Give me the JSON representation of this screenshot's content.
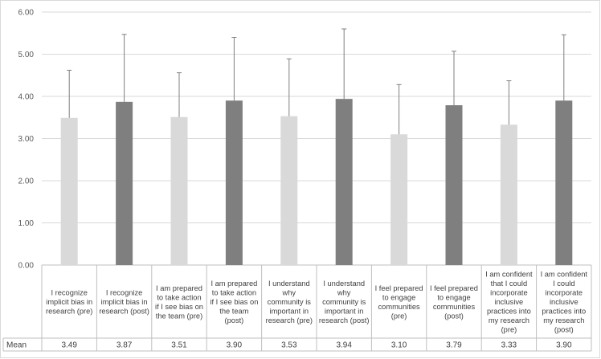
{
  "chart_data": {
    "type": "bar",
    "title": "",
    "xlabel": "",
    "ylabel": "",
    "ylim": [
      0,
      6
    ],
    "yticks": [
      "0.00",
      "1.00",
      "2.00",
      "3.00",
      "4.00",
      "5.00",
      "6.00"
    ],
    "grid": true,
    "legend": "none",
    "data_table": true,
    "data_table_row_label": "Mean",
    "categories": [
      [
        "I recognize",
        "implicit bias in",
        "research (pre)"
      ],
      [
        "I recognize",
        "implicit bias in",
        "research (post)"
      ],
      [
        "I am prepared",
        "to take action",
        "if I see bias on",
        "the  team (pre)"
      ],
      [
        "I am prepared",
        "to take action",
        "if I see bias on",
        "the  team",
        "(post)"
      ],
      [
        "I understand",
        "why",
        "community is",
        "important in",
        "research (pre)"
      ],
      [
        "I understand",
        "why",
        "community is",
        "important in",
        "research (post)"
      ],
      [
        "I feel prepared",
        "to engage",
        "communities",
        "(pre)"
      ],
      [
        "I feel prepared",
        "to engage",
        "communities",
        "(post)"
      ],
      [
        "I am confident",
        "that I could",
        "incorporate",
        "inclusive",
        "practices into",
        "my research",
        "(pre)"
      ],
      [
        "I am confident",
        "I could",
        "incorporate",
        "inclusive",
        "practices into",
        "my research",
        "(post)"
      ]
    ],
    "values": [
      3.49,
      3.87,
      3.51,
      3.9,
      3.53,
      3.94,
      3.1,
      3.79,
      3.33,
      3.9
    ],
    "value_labels": [
      "3.49",
      "3.87",
      "3.51",
      "3.90",
      "3.53",
      "3.94",
      "3.10",
      "3.79",
      "3.33",
      "3.90"
    ],
    "error_upper": [
      4.62,
      5.47,
      4.56,
      5.4,
      4.89,
      5.6,
      4.28,
      5.07,
      4.37,
      5.46
    ],
    "colors": {
      "pre": "#d9d9d9",
      "post": "#7f7f7f",
      "axis": "#bfbfbf",
      "grid": "#d9d9d9",
      "error": "#7f7f7f"
    }
  }
}
